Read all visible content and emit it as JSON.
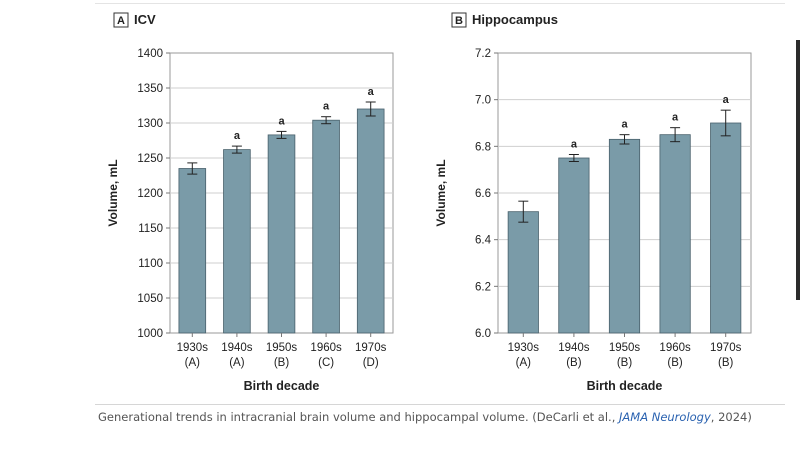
{
  "chart_data": [
    {
      "type": "bar",
      "panel_letter": "A",
      "title": "ICV",
      "ylabel": "Volume, mL",
      "xlabel": "Birth decade",
      "ylim": [
        1000,
        1400
      ],
      "yticks": [
        "1000",
        "1050",
        "1100",
        "1150",
        "1200",
        "1250",
        "1300",
        "1350",
        "1400"
      ],
      "categories": [
        "1930s",
        "1940s",
        "1950s",
        "1960s",
        "1970s"
      ],
      "groups": [
        "(A)",
        "(A)",
        "(B)",
        "(C)",
        "(D)"
      ],
      "values": [
        1235,
        1262,
        1283,
        1304,
        1320
      ],
      "errors": [
        8,
        5,
        5,
        5,
        10
      ],
      "annotations": [
        "",
        "a",
        "a",
        "a",
        "a"
      ],
      "bar_color": "#7a9ba8"
    },
    {
      "type": "bar",
      "panel_letter": "B",
      "title": "Hippocampus",
      "ylabel": "Volume, mL",
      "xlabel": "Birth decade",
      "ylim": [
        6.0,
        7.2
      ],
      "yticks": [
        "6.0",
        "6.2",
        "6.4",
        "6.6",
        "6.8",
        "7.0",
        "7.2"
      ],
      "categories": [
        "1930s",
        "1940s",
        "1950s",
        "1960s",
        "1970s"
      ],
      "groups": [
        "(A)",
        "(B)",
        "(B)",
        "(B)",
        "(B)"
      ],
      "values": [
        6.52,
        6.75,
        6.83,
        6.85,
        6.9
      ],
      "errors": [
        0.045,
        0.015,
        0.02,
        0.03,
        0.055
      ],
      "annotations": [
        "",
        "a",
        "a",
        "a",
        "a"
      ],
      "bar_color": "#7a9ba8"
    }
  ],
  "caption": {
    "text_before": "Generational trends in intracranial brain volume and hippocampal volume. (DeCarli et al., ",
    "journal": "JAMA Neurology",
    "text_after": ", 2024)"
  }
}
